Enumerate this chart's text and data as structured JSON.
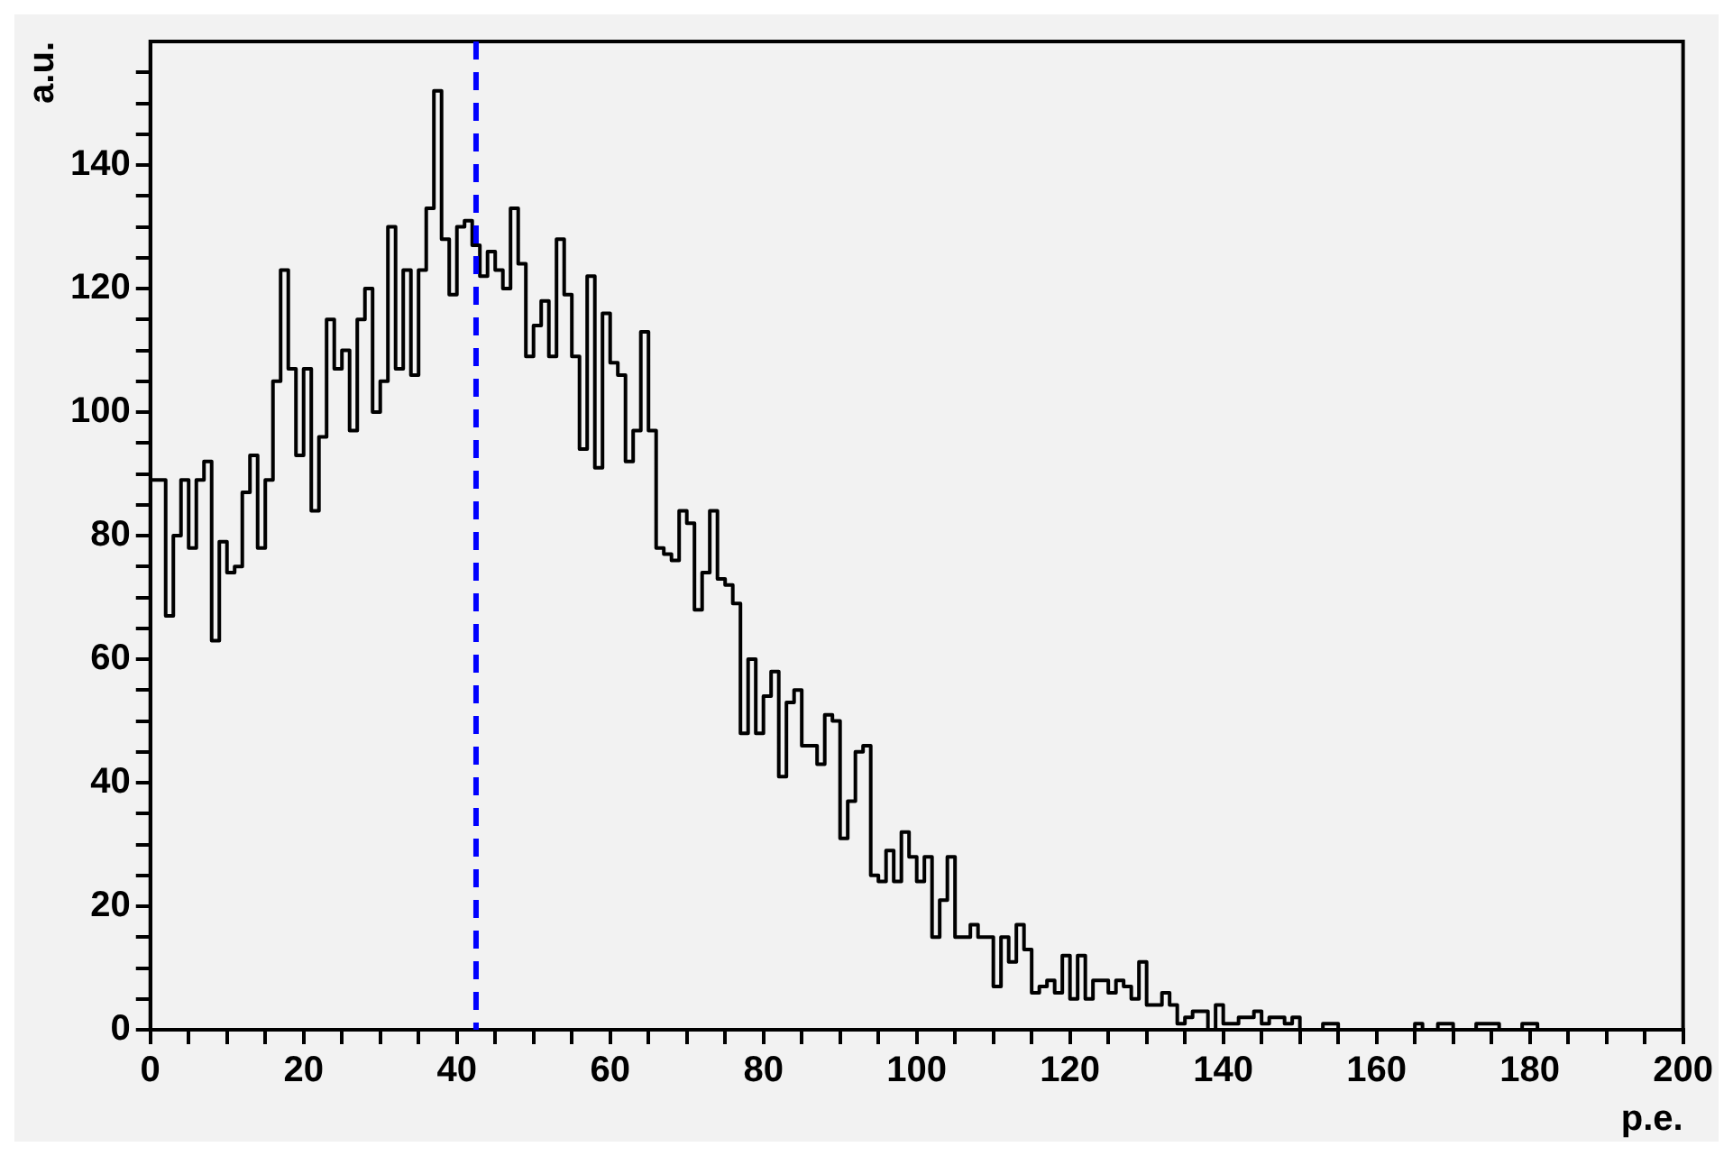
{
  "chart_data": {
    "type": "histogram",
    "xlabel": "p.e.",
    "ylabel": "a.u.",
    "bins": [
      0,
      1,
      2,
      3,
      4,
      5,
      6,
      7,
      8,
      9,
      10,
      11,
      12,
      13,
      14,
      15,
      16,
      17,
      18,
      19,
      20,
      21,
      22,
      23,
      24,
      25,
      26,
      27,
      28,
      29,
      30,
      31,
      32,
      33,
      34,
      35,
      36,
      37,
      38,
      39,
      40,
      41,
      42,
      43,
      44,
      45,
      46,
      47,
      48,
      49,
      50,
      51,
      52,
      53,
      54,
      55,
      56,
      57,
      58,
      59,
      60,
      61,
      62,
      63,
      64,
      65,
      66,
      67,
      68,
      69,
      70,
      71,
      72,
      73,
      74,
      75,
      76,
      77,
      78,
      79,
      80,
      81,
      82,
      83,
      84,
      85,
      86,
      87,
      88,
      89,
      90,
      91,
      92,
      93,
      94,
      95,
      96,
      97,
      98,
      99,
      100,
      101,
      102,
      103,
      104,
      105,
      106,
      107,
      108,
      109,
      110,
      111,
      112,
      113,
      114,
      115,
      116,
      117,
      118,
      119,
      120,
      121,
      122,
      123,
      124,
      125,
      126,
      127,
      128,
      129,
      130,
      131,
      132,
      133,
      134,
      135,
      136,
      137,
      138,
      139,
      140,
      141,
      142,
      143,
      144,
      145,
      146,
      147,
      148,
      149,
      150,
      151,
      152,
      153,
      154,
      155,
      156,
      157,
      158,
      159,
      160,
      161,
      162,
      163,
      164,
      165,
      166,
      167,
      168,
      169,
      170,
      171,
      172,
      173,
      174,
      175,
      176,
      177,
      178,
      179,
      180,
      181,
      182,
      183,
      184,
      185,
      186,
      187,
      188,
      189,
      190,
      191,
      192,
      193,
      194,
      195,
      196,
      197,
      198,
      199,
      200
    ],
    "values": [
      89,
      89,
      67,
      80,
      89,
      78,
      89,
      92,
      63,
      79,
      74,
      75,
      87,
      93,
      78,
      89,
      105,
      123,
      107,
      93,
      107,
      84,
      96,
      115,
      107,
      110,
      97,
      115,
      120,
      100,
      105,
      130,
      107,
      123,
      106,
      123,
      133,
      152,
      128,
      119,
      130,
      131,
      127,
      122,
      126,
      123,
      120,
      133,
      124,
      109,
      114,
      118,
      109,
      128,
      119,
      109,
      94,
      122,
      91,
      116,
      108,
      106,
      92,
      97,
      113,
      97,
      78,
      77,
      76,
      84,
      82,
      68,
      74,
      84,
      73,
      72,
      69,
      48,
      60,
      48,
      54,
      58,
      41,
      53,
      55,
      46,
      46,
      43,
      51,
      50,
      31,
      37,
      45,
      46,
      25,
      24,
      29,
      24,
      32,
      28,
      24,
      28,
      15,
      21,
      28,
      15,
      15,
      17,
      15,
      15,
      7,
      15,
      11,
      17,
      13,
      6,
      7,
      8,
      6,
      12,
      5,
      12,
      5,
      8,
      8,
      6,
      8,
      7,
      5,
      11,
      4,
      4,
      6,
      4,
      1,
      2,
      3,
      3,
      0,
      4,
      1,
      1,
      2,
      2,
      3,
      1,
      2,
      2,
      1,
      2,
      0,
      0,
      0,
      1,
      1,
      0,
      0,
      0,
      0,
      0,
      0,
      0,
      0,
      0,
      0,
      1,
      0,
      0,
      1,
      1,
      0,
      0,
      0,
      1,
      1,
      1,
      0,
      0,
      0,
      1,
      1,
      0,
      0,
      0,
      0,
      0,
      0,
      0,
      0,
      0,
      0,
      0,
      0,
      0,
      0,
      0,
      0,
      0,
      0,
      0
    ],
    "color": "#000000",
    "xlim": [
      0,
      200
    ],
    "xticks": [
      0,
      {
        "value": 5,
        "label": null
      },
      {
        "value": 10,
        "label": null
      },
      {
        "value": 15,
        "label": null
      },
      20,
      {
        "value": 25,
        "label": null
      },
      {
        "value": 30,
        "label": null
      },
      {
        "value": 35,
        "label": null
      },
      40,
      {
        "value": 45,
        "label": null
      },
      {
        "value": 50,
        "label": null
      },
      {
        "value": 55,
        "label": null
      },
      60,
      {
        "value": 65,
        "label": null
      },
      {
        "value": 70,
        "label": null
      },
      {
        "value": 75,
        "label": null
      },
      80,
      {
        "value": 85,
        "label": null
      },
      {
        "value": 90,
        "label": null
      },
      {
        "value": 95,
        "label": null
      },
      100,
      {
        "value": 105,
        "label": null
      },
      {
        "value": 110,
        "label": null
      },
      {
        "value": 115,
        "label": null
      },
      120,
      {
        "value": 125,
        "label": null
      },
      {
        "value": 130,
        "label": null
      },
      {
        "value": 135,
        "label": null
      },
      140,
      {
        "value": 145,
        "label": null
      },
      {
        "value": 150,
        "label": null
      },
      {
        "value": 155,
        "label": null
      },
      160,
      {
        "value": 165,
        "label": null
      },
      {
        "value": 170,
        "label": null
      },
      {
        "value": 175,
        "label": null
      },
      180,
      {
        "value": 185,
        "label": null
      },
      {
        "value": 190,
        "label": null
      },
      {
        "value": 195,
        "label": null
      },
      200
    ],
    "ylim": [
      0,
      160
    ],
    "yticks": [
      0,
      {
        "value": 5,
        "label": null
      },
      {
        "value": 10,
        "label": null
      },
      {
        "value": 15,
        "label": null
      },
      20,
      {
        "value": 25,
        "label": null
      },
      {
        "value": 30,
        "label": null
      },
      {
        "value": 35,
        "label": null
      },
      40,
      {
        "value": 45,
        "label": null
      },
      {
        "value": 50,
        "label": null
      },
      {
        "value": 55,
        "label": null
      },
      60,
      {
        "value": 65,
        "label": null
      },
      {
        "value": 70,
        "label": null
      },
      {
        "value": 75,
        "label": null
      },
      80,
      {
        "value": 85,
        "label": null
      },
      {
        "value": 90,
        "label": null
      },
      {
        "value": 95,
        "label": null
      },
      100,
      {
        "value": 105,
        "label": null
      },
      {
        "value": 110,
        "label": null
      },
      {
        "value": 115,
        "label": null
      },
      120,
      {
        "value": 125,
        "label": null
      },
      {
        "value": 130,
        "label": null
      },
      {
        "value": 135,
        "label": null
      },
      140,
      {
        "value": 145,
        "label": null
      },
      {
        "value": 150,
        "label": null
      },
      {
        "value": 155,
        "label": null
      }
    ],
    "ref_lines": [
      {
        "axis": "x",
        "value": 42.5,
        "color": "#0000ff",
        "line_style": "dashed"
      }
    ],
    "grid": false,
    "legend": false
  }
}
